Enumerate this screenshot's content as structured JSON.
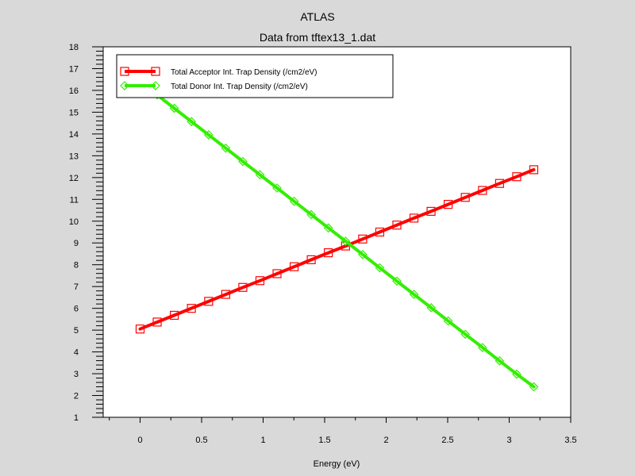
{
  "chart_data": {
    "type": "line",
    "title": "ATLAS",
    "subtitle": "Data from tftex13_1.dat",
    "xlabel": "Energy (eV)",
    "ylabel": "",
    "xlim": [
      -0.3,
      3.5
    ],
    "ylim": [
      1,
      18
    ],
    "xticks": [
      "0",
      "0.5",
      "1",
      "1.5",
      "2",
      "2.5",
      "3",
      "3.5"
    ],
    "yticks": [
      "1",
      "2",
      "3",
      "4",
      "5",
      "6",
      "7",
      "8",
      "9",
      "10",
      "11",
      "12",
      "13",
      "14",
      "15",
      "16",
      "17",
      "18"
    ],
    "grid": false,
    "legend_position": "top-left",
    "x": [
      0,
      0.139,
      0.278,
      0.417,
      0.557,
      0.696,
      0.835,
      0.974,
      1.113,
      1.252,
      1.391,
      1.53,
      1.67,
      1.809,
      1.948,
      2.087,
      2.226,
      2.365,
      2.504,
      2.643,
      2.783,
      2.922,
      3.061,
      3.2
    ],
    "series": [
      {
        "name": "Total Acceptor Int. Trap Density (/cm2/eV)",
        "color": "#ff0000",
        "marker": "square",
        "values": [
          5.05,
          5.37,
          5.68,
          6.0,
          6.32,
          6.64,
          6.96,
          7.27,
          7.59,
          7.91,
          8.23,
          8.55,
          8.86,
          9.18,
          9.5,
          9.82,
          10.14,
          10.45,
          10.77,
          11.09,
          11.41,
          11.73,
          12.04,
          12.36
        ]
      },
      {
        "name": "Total Donor Int. Trap Density (/cm2/eV)",
        "color": "#33ee00",
        "marker": "diamond",
        "values": [
          16.4,
          15.79,
          15.18,
          14.57,
          13.96,
          13.35,
          12.74,
          12.13,
          11.52,
          10.91,
          10.3,
          9.69,
          9.08,
          8.47,
          7.86,
          7.25,
          6.64,
          6.03,
          5.42,
          4.81,
          4.2,
          3.59,
          2.98,
          2.4
        ]
      }
    ]
  }
}
